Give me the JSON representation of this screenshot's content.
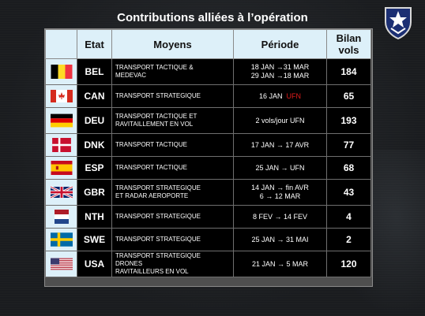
{
  "title": "Contributions alliées à l’opération",
  "headers": {
    "etat": "Etat",
    "moyens": "Moyens",
    "periode": "Période",
    "bilan": "Bilan\nvols"
  },
  "emblem_icon": "military-shield-crest",
  "rows": [
    {
      "code": "BEL",
      "flag": "flag-belgium",
      "moyens": "TRANSPORT TACTIQUE &\nMEDEVAC",
      "periode": "18 JAN →31 MAR\n29 JAN →18 MAR",
      "bilan": "184"
    },
    {
      "code": "CAN",
      "flag": "flag-canada",
      "moyens": "TRANSPORT STRATEGIQUE",
      "periode_a": "16 JAN",
      "periode_b": "UFN",
      "bilan": "65"
    },
    {
      "code": "DEU",
      "flag": "flag-germany",
      "moyens": "TRANSPORT TACTIQUE  ET\nRAVITAILLEMENT EN VOL",
      "periode": "2 vols/jour UFN",
      "bilan": "193"
    },
    {
      "code": "DNK",
      "flag": "flag-denmark",
      "moyens": "TRANSPORT TACTIQUE",
      "periode": "17 JAN → 17 AVR",
      "bilan": "77"
    },
    {
      "code": "ESP",
      "flag": "flag-spain",
      "moyens": "TRANSPORT TACTIQUE",
      "periode": "25 JAN → UFN",
      "bilan": "68"
    },
    {
      "code": "GBR",
      "flag": "flag-united-kingdom",
      "moyens": "TRANSPORT STRATEGIQUE\nET RADAR AEROPORTE",
      "periode": "14 JAN → fin AVR\n6 → 12 MAR",
      "bilan": "43"
    },
    {
      "code": "NTH",
      "flag": "flag-netherlands",
      "moyens": "TRANSPORT STRATEGIQUE",
      "periode": "8 FEV → 14 FEV",
      "bilan": "4"
    },
    {
      "code": "SWE",
      "flag": "flag-sweden",
      "moyens": "TRANSPORT STRATEGIQUE",
      "periode": "25 JAN → 31 MAI",
      "bilan": "2"
    },
    {
      "code": "USA",
      "flag": "flag-usa",
      "moyens": "TRANSPORT STRATEGIQUE\nDRONES\nRAVITAILLEURS EN VOL",
      "periode": "21 JAN → 5 MAR",
      "bilan": "120"
    }
  ]
}
